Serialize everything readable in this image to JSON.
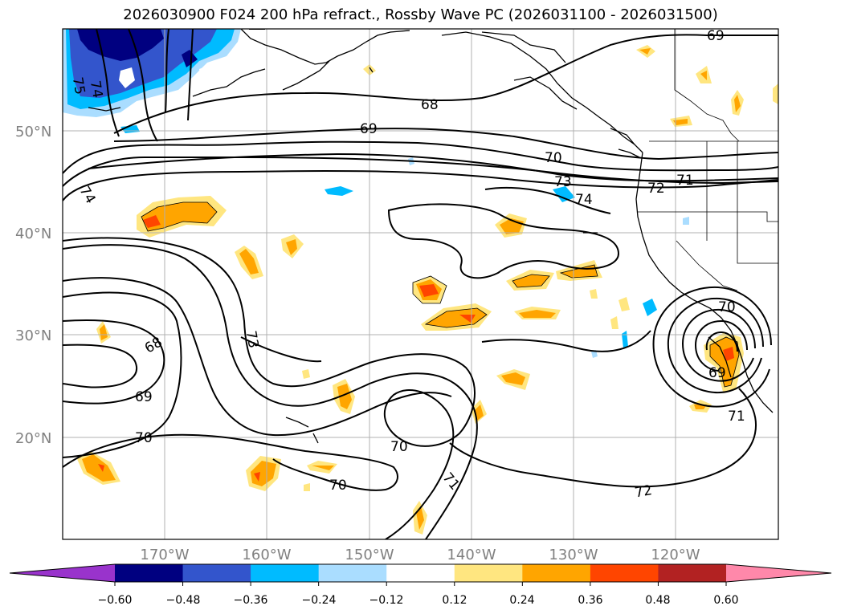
{
  "title": "2026030900 F024 200 hPa refract., Rossby Wave PC (2026031100 - 2026031500)",
  "map": {
    "lat_labels": [
      {
        "text": "50°N",
        "lat": 50
      },
      {
        "text": "40°N",
        "lat": 40
      },
      {
        "text": "30°N",
        "lat": 30
      },
      {
        "text": "20°N",
        "lat": 20
      }
    ],
    "lon_labels": [
      {
        "text": "170°W",
        "lon": -170
      },
      {
        "text": "160°W",
        "lon": -160
      },
      {
        "text": "150°W",
        "lon": -150
      },
      {
        "text": "140°W",
        "lon": -140
      },
      {
        "text": "130°W",
        "lon": -130
      },
      {
        "text": "120°W",
        "lon": -120
      }
    ],
    "contour_labels": [
      "75",
      "74",
      "68",
      "69",
      "70",
      "73",
      "74",
      "72",
      "71",
      "74",
      "73",
      "68",
      "69",
      "70",
      "70",
      "70",
      "71",
      "72",
      "70",
      "69",
      "71",
      "69"
    ]
  },
  "colorbar": {
    "tick_labels": [
      "−0.60",
      "−0.48",
      "−0.36",
      "−0.24",
      "−0.12",
      "0.12",
      "0.24",
      "0.36",
      "0.48",
      "0.60"
    ],
    "colors": [
      "#9933cc",
      "#000080",
      "#3355cc",
      "#00bbff",
      "#aaddff",
      "#ffffff",
      "#ffe680",
      "#ffa500",
      "#ff4500",
      "#b22222",
      "#ff88aa"
    ]
  }
}
